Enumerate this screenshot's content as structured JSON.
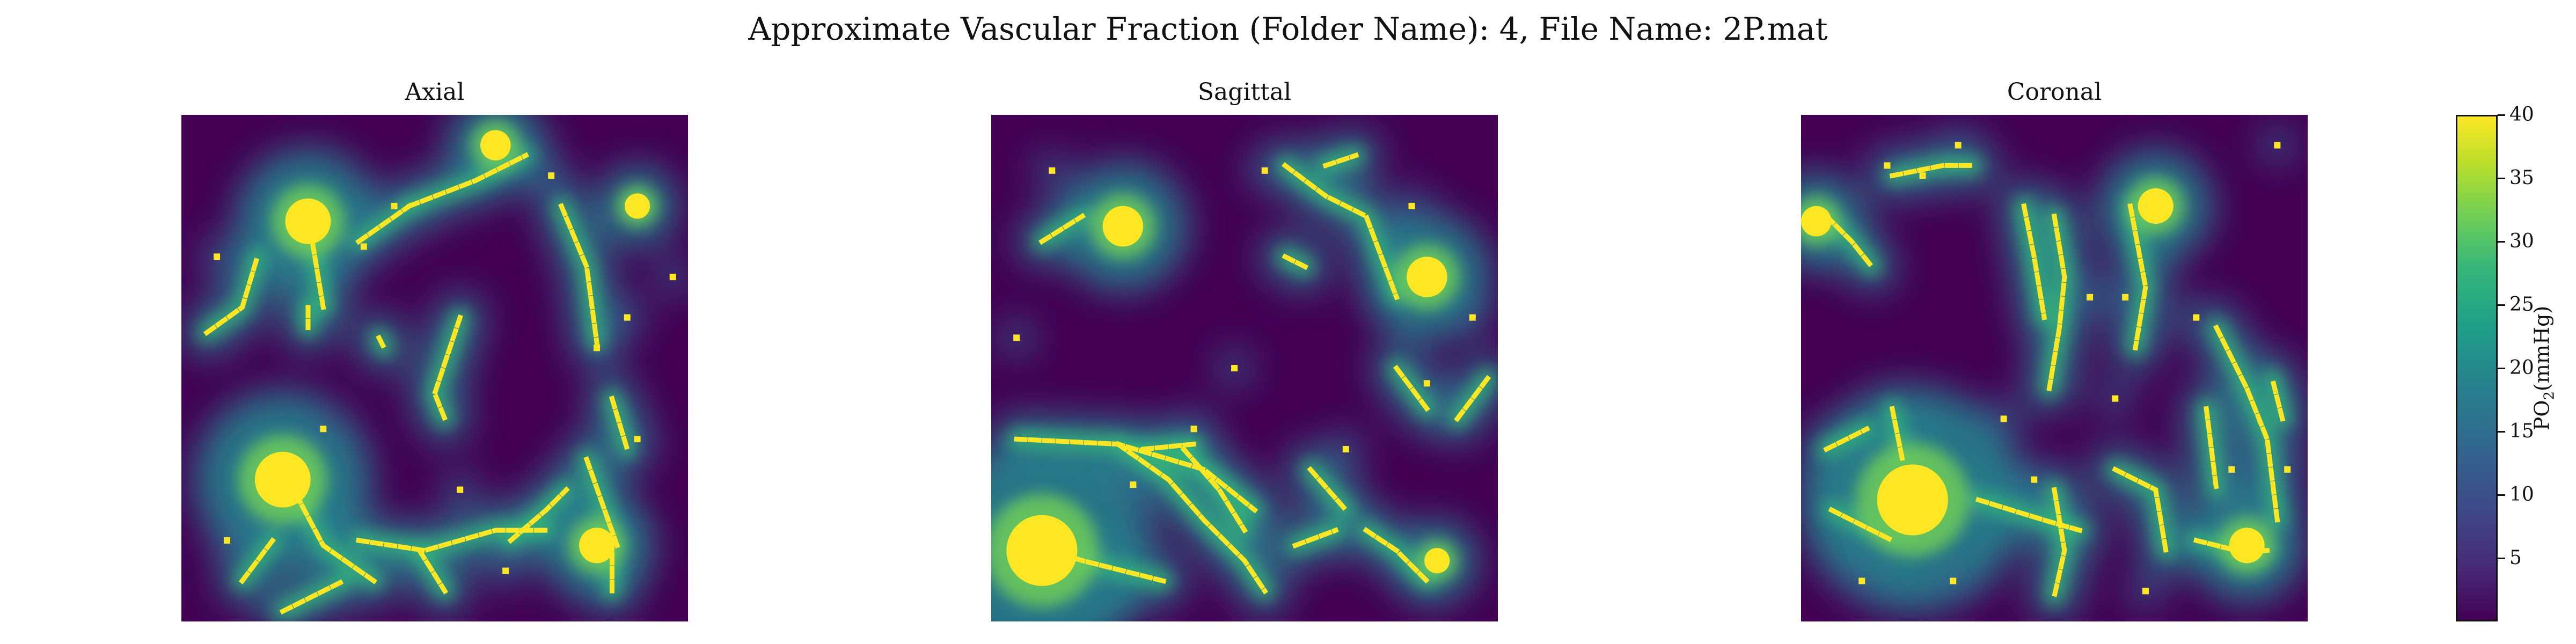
{
  "figure": {
    "suptitle": "Approximate Vascular Fraction (Folder Name): 4, File Name: 2P.mat"
  },
  "chart_data": {
    "type": "heatmap",
    "colormap": "viridis",
    "panels": [
      {
        "title": "Axial",
        "vessels": [
          [
            [
              0.25,
              0.2
            ],
            [
              0.28,
              0.38
            ]
          ],
          [
            [
              0.25,
              0.38
            ],
            [
              0.25,
              0.42
            ]
          ],
          [
            [
              0.35,
              0.25
            ],
            [
              0.45,
              0.18
            ]
          ],
          [
            [
              0.39,
              0.44
            ],
            [
              0.4,
              0.46
            ]
          ],
          [
            [
              0.05,
              0.43
            ],
            [
              0.12,
              0.38
            ],
            [
              0.15,
              0.28
            ]
          ],
          [
            [
              0.45,
              0.18
            ],
            [
              0.58,
              0.13
            ],
            [
              0.68,
              0.08
            ]
          ],
          [
            [
              0.75,
              0.18
            ],
            [
              0.8,
              0.3
            ],
            [
              0.82,
              0.45
            ]
          ],
          [
            [
              0.55,
              0.4
            ],
            [
              0.5,
              0.55
            ],
            [
              0.52,
              0.6
            ]
          ],
          [
            [
              0.2,
              0.7
            ],
            [
              0.28,
              0.85
            ],
            [
              0.38,
              0.92
            ]
          ],
          [
            [
              0.35,
              0.84
            ],
            [
              0.48,
              0.86
            ],
            [
              0.62,
              0.82
            ],
            [
              0.72,
              0.82
            ]
          ],
          [
            [
              0.65,
              0.84
            ],
            [
              0.72,
              0.78
            ],
            [
              0.76,
              0.74
            ]
          ],
          [
            [
              0.47,
              0.86
            ],
            [
              0.52,
              0.94
            ]
          ],
          [
            [
              0.85,
              0.56
            ],
            [
              0.88,
              0.66
            ]
          ],
          [
            [
              0.8,
              0.68
            ],
            [
              0.86,
              0.85
            ]
          ],
          [
            [
              0.85,
              0.84
            ],
            [
              0.85,
              0.94
            ]
          ],
          [
            [
              0.12,
              0.92
            ],
            [
              0.18,
              0.84
            ]
          ],
          [
            [
              0.2,
              0.98
            ],
            [
              0.32,
              0.92
            ]
          ]
        ],
        "blobs": [
          [
            0.25,
            0.21,
            0.045
          ],
          [
            0.2,
            0.72,
            0.055
          ],
          [
            0.82,
            0.85,
            0.035
          ],
          [
            0.9,
            0.18,
            0.025
          ],
          [
            0.62,
            0.06,
            0.03
          ]
        ],
        "dots": [
          [
            0.42,
            0.18
          ],
          [
            0.36,
            0.26
          ],
          [
            0.73,
            0.12
          ],
          [
            0.88,
            0.4
          ],
          [
            0.97,
            0.32
          ],
          [
            0.07,
            0.28
          ],
          [
            0.64,
            0.9
          ],
          [
            0.82,
            0.46
          ],
          [
            0.55,
            0.74
          ],
          [
            0.28,
            0.62
          ],
          [
            0.09,
            0.84
          ],
          [
            0.9,
            0.64
          ]
        ]
      },
      {
        "title": "Sagittal",
        "vessels": [
          [
            [
              0.05,
              0.64
            ],
            [
              0.25,
              0.65
            ],
            [
              0.42,
              0.7
            ],
            [
              0.52,
              0.78
            ]
          ],
          [
            [
              0.25,
              0.65
            ],
            [
              0.35,
              0.72
            ],
            [
              0.42,
              0.8
            ],
            [
              0.5,
              0.88
            ],
            [
              0.54,
              0.94
            ]
          ],
          [
            [
              0.38,
              0.66
            ],
            [
              0.45,
              0.74
            ],
            [
              0.5,
              0.82
            ]
          ],
          [
            [
              0.3,
              0.66
            ],
            [
              0.4,
              0.65
            ]
          ],
          [
            [
              0.6,
              0.85
            ],
            [
              0.68,
              0.82
            ]
          ],
          [
            [
              0.74,
              0.82
            ],
            [
              0.8,
              0.86
            ],
            [
              0.86,
              0.92
            ]
          ],
          [
            [
              0.06,
              0.84
            ],
            [
              0.18,
              0.88
            ],
            [
              0.34,
              0.92
            ]
          ],
          [
            [
              0.58,
              0.1
            ],
            [
              0.66,
              0.16
            ],
            [
              0.74,
              0.2
            ],
            [
              0.8,
              0.36
            ]
          ],
          [
            [
              0.58,
              0.28
            ],
            [
              0.62,
              0.3
            ]
          ],
          [
            [
              0.66,
              0.1
            ],
            [
              0.72,
              0.08
            ]
          ],
          [
            [
              0.1,
              0.25
            ],
            [
              0.18,
              0.2
            ]
          ],
          [
            [
              0.63,
              0.7
            ],
            [
              0.7,
              0.78
            ]
          ],
          [
            [
              0.8,
              0.5
            ],
            [
              0.86,
              0.58
            ]
          ],
          [
            [
              0.92,
              0.6
            ],
            [
              0.98,
              0.52
            ]
          ]
        ],
        "blobs": [
          [
            0.1,
            0.86,
            0.07
          ],
          [
            0.26,
            0.22,
            0.04
          ],
          [
            0.86,
            0.32,
            0.04
          ],
          [
            0.88,
            0.88,
            0.025
          ]
        ],
        "dots": [
          [
            0.12,
            0.11
          ],
          [
            0.54,
            0.11
          ],
          [
            0.05,
            0.44
          ],
          [
            0.48,
            0.5
          ],
          [
            0.83,
            0.18
          ],
          [
            0.7,
            0.66
          ],
          [
            0.86,
            0.53
          ],
          [
            0.4,
            0.62
          ],
          [
            0.28,
            0.73
          ],
          [
            0.95,
            0.4
          ]
        ]
      },
      {
        "title": "Coronal",
        "vessels": [
          [
            [
              0.05,
              0.2
            ],
            [
              0.1,
              0.25
            ],
            [
              0.14,
              0.3
            ]
          ],
          [
            [
              0.18,
              0.12
            ],
            [
              0.28,
              0.1
            ],
            [
              0.34,
              0.1
            ]
          ],
          [
            [
              0.44,
              0.18
            ],
            [
              0.46,
              0.28
            ],
            [
              0.48,
              0.4
            ]
          ],
          [
            [
              0.5,
              0.2
            ],
            [
              0.52,
              0.32
            ],
            [
              0.51,
              0.42
            ],
            [
              0.49,
              0.54
            ]
          ],
          [
            [
              0.65,
              0.18
            ],
            [
              0.68,
              0.34
            ],
            [
              0.66,
              0.46
            ]
          ],
          [
            [
              0.82,
              0.42
            ],
            [
              0.88,
              0.54
            ],
            [
              0.92,
              0.64
            ],
            [
              0.94,
              0.8
            ]
          ],
          [
            [
              0.05,
              0.66
            ],
            [
              0.13,
              0.62
            ]
          ],
          [
            [
              0.18,
              0.58
            ],
            [
              0.2,
              0.68
            ]
          ],
          [
            [
              0.35,
              0.76
            ],
            [
              0.48,
              0.8
            ],
            [
              0.55,
              0.82
            ]
          ],
          [
            [
              0.5,
              0.74
            ],
            [
              0.52,
              0.86
            ],
            [
              0.5,
              0.95
            ]
          ],
          [
            [
              0.62,
              0.7
            ],
            [
              0.7,
              0.74
            ],
            [
              0.72,
              0.86
            ]
          ],
          [
            [
              0.78,
              0.84
            ],
            [
              0.86,
              0.86
            ],
            [
              0.92,
              0.86
            ]
          ],
          [
            [
              0.8,
              0.58
            ],
            [
              0.82,
              0.74
            ]
          ],
          [
            [
              0.06,
              0.78
            ],
            [
              0.18,
              0.84
            ]
          ],
          [
            [
              0.95,
              0.6
            ],
            [
              0.93,
              0.52
            ]
          ]
        ],
        "blobs": [
          [
            0.22,
            0.76,
            0.07
          ],
          [
            0.7,
            0.18,
            0.035
          ],
          [
            0.88,
            0.85,
            0.035
          ],
          [
            0.03,
            0.21,
            0.03
          ]
        ],
        "dots": [
          [
            0.17,
            0.1
          ],
          [
            0.24,
            0.12
          ],
          [
            0.31,
            0.06
          ],
          [
            0.57,
            0.36
          ],
          [
            0.64,
            0.36
          ],
          [
            0.94,
            0.06
          ],
          [
            0.78,
            0.4
          ],
          [
            0.12,
            0.92
          ],
          [
            0.3,
            0.92
          ],
          [
            0.46,
            0.72
          ],
          [
            0.62,
            0.56
          ],
          [
            0.68,
            0.94
          ],
          [
            0.85,
            0.7
          ],
          [
            0.96,
            0.7
          ],
          [
            0.4,
            0.6
          ]
        ]
      }
    ],
    "colorbar": {
      "label": "PO$_2$(mmHg)",
      "label_text": "PO",
      "label_sub": "2",
      "label_unit": "(mmHg)",
      "min": 0,
      "max": 40,
      "ticks": [
        5,
        10,
        15,
        20,
        25,
        30,
        35,
        40
      ],
      "tick_labels": [
        "5",
        "10",
        "15",
        "20",
        "25",
        "30",
        "35",
        "40"
      ]
    }
  }
}
